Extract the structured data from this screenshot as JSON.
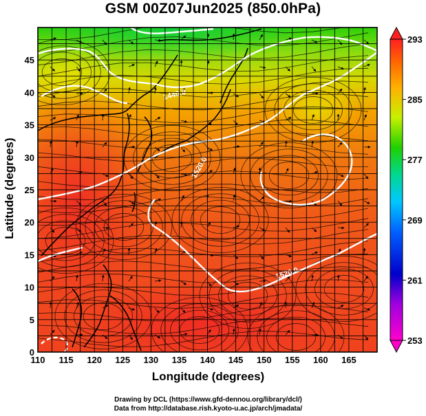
{
  "title": "GSM 00Z07Jun2025 (850.0hPa)",
  "x_axis": {
    "label": "Longitude (degrees)",
    "ticks": [
      "110",
      "115",
      "120",
      "125",
      "130",
      "135",
      "140",
      "145",
      "150",
      "155",
      "160",
      "165"
    ]
  },
  "y_axis": {
    "label": "Latitude (degrees)",
    "ticks": [
      "0",
      "5",
      "10",
      "15",
      "20",
      "25",
      "30",
      "35",
      "40",
      "45"
    ]
  },
  "colorbar": {
    "ticks": [
      "253",
      "261",
      "269",
      "277",
      "285",
      "293"
    ],
    "colors": [
      "#ff00cc",
      "#0000cc",
      "#00a0ff",
      "#00d0a0",
      "#40d000",
      "#c8ff00",
      "#ffb000",
      "#ff6000",
      "#ff2020"
    ]
  },
  "contours": [
    {
      "label": "1440.0"
    },
    {
      "label": "1520.0"
    },
    {
      "label": "1520.0"
    }
  ],
  "credits": {
    "line1": "Drawing by DCL (https://www.gfd-dennou.org/library/dcl/)",
    "line2": "Data from http://database.rish.kyoto-u.ac.jp/arch/jmadata/"
  },
  "chart_data": {
    "type": "heatmap",
    "title": "GSM 00Z07Jun2025 (850.0hPa)",
    "xlabel": "Longitude (degrees)",
    "ylabel": "Latitude (degrees)",
    "xlim": [
      110,
      170
    ],
    "ylim": [
      0,
      50
    ],
    "color_range": [
      253,
      293
    ],
    "contour_labels": [
      "1440.0",
      "1520.0",
      "1520.0"
    ]
  }
}
